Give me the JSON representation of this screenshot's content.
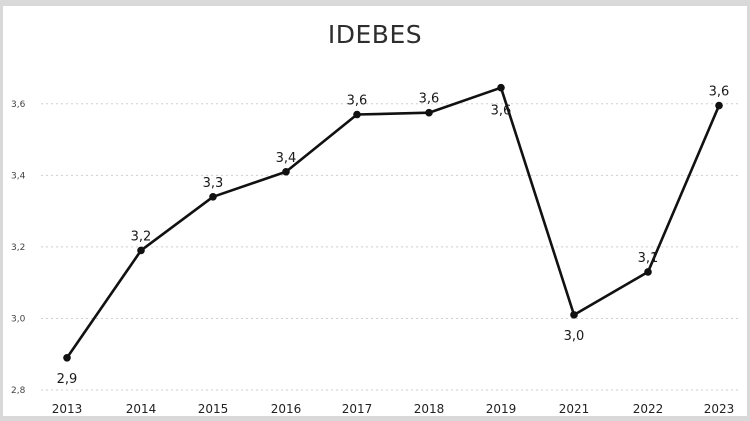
{
  "chart_data": {
    "type": "line",
    "title": "IDEBES",
    "xlabel": "",
    "ylabel": "",
    "categories": [
      "2013",
      "2014",
      "2015",
      "2016",
      "2017",
      "2018",
      "2019",
      "2021",
      "2022",
      "2023"
    ],
    "series": [
      {
        "values": [
          2.89,
          3.19,
          3.34,
          3.41,
          3.57,
          3.575,
          3.645,
          3.01,
          3.13,
          3.595
        ],
        "labels": [
          "2,9",
          "3,2",
          "3,3",
          "3,4",
          "3,6",
          "3,6",
          "3,6",
          "3,0",
          "3,1",
          "3,6"
        ]
      }
    ],
    "ylim": [
      2.8,
      3.7
    ],
    "yticks": [
      "2,8",
      "3,0",
      "3,2",
      "3,4",
      "3,6"
    ],
    "grid": true,
    "line_color": "#111111",
    "grid_color": "#cfcfcf"
  }
}
